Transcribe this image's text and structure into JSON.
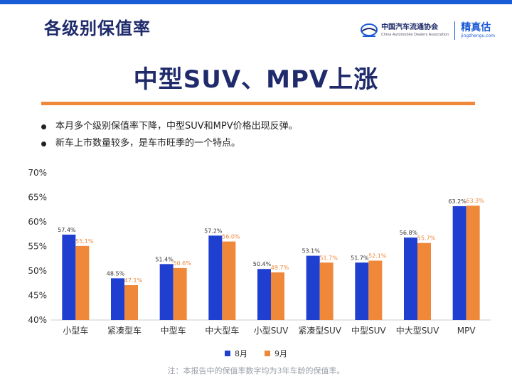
{
  "header": {
    "page_title": "各级别保值率",
    "logo_cada_cn": "中国汽车流通协会",
    "logo_cada_en": "China Automobile Dealers Association",
    "logo_jzg_cn": "精真估",
    "logo_jzg_url": "jingzhengu.com"
  },
  "headline": "中型SUV、MPV上涨",
  "bullets": [
    "本月多个级别保值率下降，中型SUV和MPV价格出现反弹。",
    "新车上市数量较多，是车市旺季的一个特点。"
  ],
  "footnote": "注：本报告中的保值率数字均为3年车龄的保值率。",
  "colors": {
    "accent": "#f0883a",
    "brand": "#1a5bd6",
    "series_aug": "#1f3fd1",
    "series_sep": "#f0883a",
    "title": "#1f2b6b"
  },
  "chart_data": {
    "type": "bar",
    "title": "",
    "xlabel": "",
    "ylabel": "",
    "categories": [
      "小型车",
      "紧凑型车",
      "中型车",
      "中大型车",
      "小型SUV",
      "紧凑型SUV",
      "中型SUV",
      "中大型SUV",
      "MPV"
    ],
    "series": [
      {
        "name": "8月",
        "values": [
          57.4,
          48.5,
          51.4,
          57.2,
          50.4,
          53.1,
          51.7,
          56.8,
          63.2
        ],
        "labels": [
          "57.4%",
          "48.5%",
          "51.4%",
          "57.2%",
          "50.4%",
          "53.1%",
          "51.7%",
          "56.8%",
          "63.2%"
        ]
      },
      {
        "name": "9月",
        "values": [
          55.1,
          47.1,
          50.6,
          56.0,
          49.7,
          51.7,
          52.1,
          55.7,
          63.3
        ],
        "labels": [
          "55.1%",
          "47.1%",
          "50.6%",
          "56.0%",
          "49.7%",
          "51.7%",
          "52.1%",
          "55.7%",
          "63.3%"
        ]
      }
    ],
    "ylim": [
      40,
      70
    ],
    "yticks": [
      40,
      45,
      50,
      55,
      60,
      65,
      70
    ],
    "ytick_labels": [
      "40%",
      "45%",
      "50%",
      "55%",
      "60%",
      "65%",
      "70%"
    ],
    "grid": false,
    "legend_position": "bottom"
  }
}
